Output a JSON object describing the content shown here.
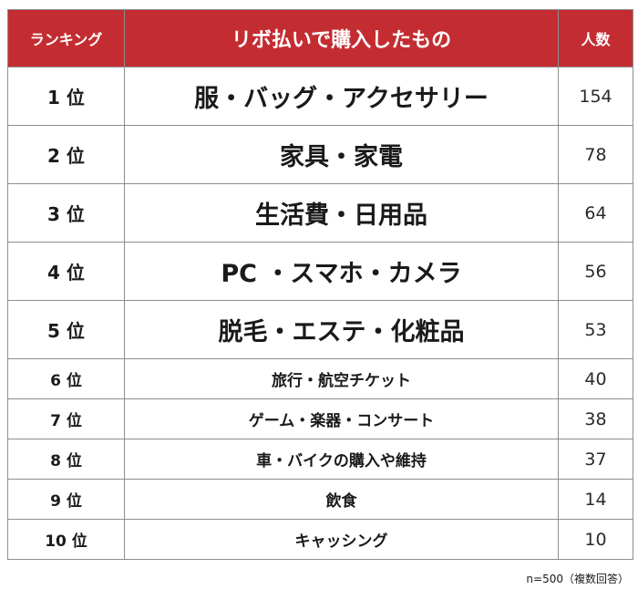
{
  "chart_data": {
    "type": "table",
    "columns": [
      "ランキング",
      "リボ払いで購入したもの",
      "人数"
    ],
    "rows": [
      {
        "rank": "1 位",
        "item": "服・バッグ・アクセサリー",
        "count": 154
      },
      {
        "rank": "2 位",
        "item": "家具・家電",
        "count": 78
      },
      {
        "rank": "3 位",
        "item": "生活費・日用品",
        "count": 64
      },
      {
        "rank": "4 位",
        "item": "PC ・スマホ・カメラ",
        "count": 56
      },
      {
        "rank": "5 位",
        "item": "脱毛・エステ・化粧品",
        "count": 53
      },
      {
        "rank": "6 位",
        "item": "旅行・航空チケット",
        "count": 40
      },
      {
        "rank": "7 位",
        "item": "ゲーム・楽器・コンサート",
        "count": 38
      },
      {
        "rank": "8 位",
        "item": "車・バイクの購入や維持",
        "count": 37
      },
      {
        "rank": "9 位",
        "item": "飲食",
        "count": 14
      },
      {
        "rank": "10 位",
        "item": "キャッシング",
        "count": 10
      }
    ],
    "footnote": "n=500（複数回答）",
    "colors": {
      "header_background": "#c32d32",
      "header_text": "#ffffff",
      "border": "#8e8e8e"
    }
  }
}
